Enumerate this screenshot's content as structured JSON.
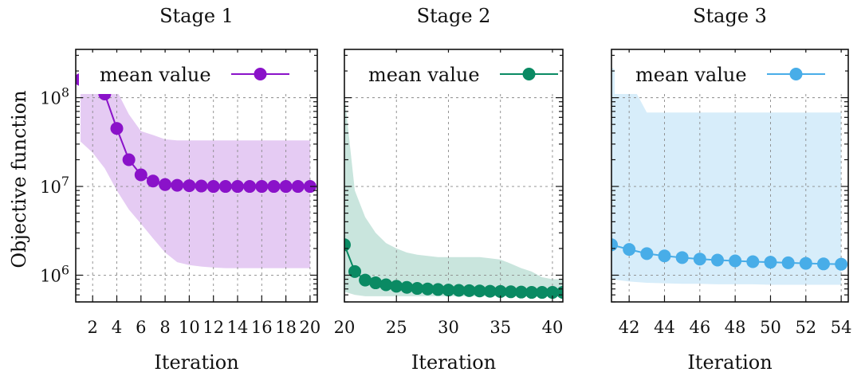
{
  "figure": {
    "ylabel": "Objective function",
    "colors": {
      "stage1": "#8a12c9",
      "stage2": "#0a8a63",
      "stage3": "#48ade8"
    }
  },
  "chart_data": [
    {
      "type": "line",
      "title": "Stage 1",
      "xlabel": "Iteration",
      "ylabel": "Objective function",
      "yscale": "log",
      "xlim": [
        0.6,
        20.6
      ],
      "ylim": [
        500000.0,
        350000000.0
      ],
      "xticks": [
        2,
        4,
        6,
        8,
        10,
        12,
        14,
        16,
        18,
        20
      ],
      "yticks": [
        {
          "value": 1000000.0,
          "label": "10^6"
        },
        {
          "value": 10000000.0,
          "label": "10^7"
        },
        {
          "value": 100000000.0,
          "label": "10^8"
        }
      ],
      "grid": true,
      "legend_position": "top",
      "series": [
        {
          "name": "mean value",
          "color": "#8a12c9",
          "x": [
            1,
            2,
            3,
            4,
            5,
            6,
            7,
            8,
            9,
            10,
            11,
            12,
            13,
            14,
            15,
            16,
            17,
            18,
            19,
            20
          ],
          "y": [
            160000000.0,
            140000000.0,
            110000000.0,
            45000000.0,
            20000000.0,
            13500000.0,
            11500000.0,
            10500000.0,
            10300000.0,
            10200000.0,
            10100000.0,
            10000000.0,
            10000000.0,
            10000000.0,
            10000000.0,
            10000000.0,
            10000000.0,
            10000000.0,
            10000000.0,
            10000000.0
          ],
          "band_lower": [
            32000000.0,
            24000000.0,
            16000000.0,
            9000000.0,
            5500000.0,
            3800000.0,
            2600000.0,
            1800000.0,
            1400000.0,
            1300000.0,
            1250000.0,
            1220000.0,
            1200000.0,
            1200000.0,
            1200000.0,
            1200000.0,
            1200000.0,
            1200000.0,
            1200000.0,
            1200000.0
          ],
          "band_upper": [
            300000000.0,
            270000000.0,
            210000000.0,
            120000000.0,
            65000000.0,
            42000000.0,
            38000000.0,
            34000000.0,
            33000000.0,
            33000000.0,
            33000000.0,
            33000000.0,
            33000000.0,
            33000000.0,
            33000000.0,
            33000000.0,
            33000000.0,
            33000000.0,
            33000000.0,
            33000000.0
          ]
        }
      ]
    },
    {
      "type": "line",
      "title": "Stage 2",
      "xlabel": "Iteration",
      "ylabel": "",
      "yscale": "log",
      "xlim": [
        20,
        41
      ],
      "ylim": [
        500000.0,
        350000000.0
      ],
      "xticks": [
        20,
        25,
        30,
        35,
        40
      ],
      "yticks": [],
      "grid": true,
      "legend_position": "top",
      "series": [
        {
          "name": "mean value",
          "color": "#0a8a63",
          "x": [
            20,
            21,
            22,
            23,
            24,
            25,
            26,
            27,
            28,
            29,
            30,
            31,
            32,
            33,
            34,
            35,
            36,
            37,
            38,
            39,
            40,
            41
          ],
          "y": [
            2200000.0,
            1100000.0,
            880000.0,
            820000.0,
            780000.0,
            750000.0,
            730000.0,
            710000.0,
            700000.0,
            690000.0,
            680000.0,
            675000.0,
            670000.0,
            665000.0,
            660000.0,
            655000.0,
            650000.0,
            645000.0,
            640000.0,
            640000.0,
            640000.0,
            640000.0
          ],
          "band_lower": [
            650000.0,
            600000.0,
            580000.0,
            580000.0,
            580000.0,
            580000.0,
            580000.0,
            580000.0,
            580000.0,
            580000.0,
            580000.0,
            580000.0,
            580000.0,
            580000.0,
            580000.0,
            580000.0,
            580000.0,
            580000.0,
            580000.0,
            580000.0,
            580000.0,
            580000.0
          ],
          "band_upper": [
            110000000.0,
            9000000.0,
            4500000.0,
            3000000.0,
            2300000.0,
            2000000.0,
            1800000.0,
            1700000.0,
            1650000.0,
            1600000.0,
            1600000.0,
            1600000.0,
            1600000.0,
            1600000.0,
            1550000.0,
            1500000.0,
            1350000.0,
            1200000.0,
            1100000.0,
            950000.0,
            900000.0,
            900000.0
          ]
        }
      ]
    },
    {
      "type": "line",
      "title": "Stage 3",
      "xlabel": "Iteration",
      "ylabel": "",
      "yscale": "log",
      "xlim": [
        41,
        54.4
      ],
      "ylim": [
        500000.0,
        350000000.0
      ],
      "xticks": [
        42,
        44,
        46,
        48,
        50,
        52,
        54
      ],
      "yticks": [],
      "grid": true,
      "legend_position": "top",
      "series": [
        {
          "name": "mean value",
          "color": "#48ade8",
          "x": [
            41,
            42,
            43,
            44,
            45,
            46,
            47,
            48,
            49,
            50,
            51,
            52,
            53,
            54
          ],
          "y": [
            2200000.0,
            1950000.0,
            1750000.0,
            1650000.0,
            1580000.0,
            1520000.0,
            1480000.0,
            1450000.0,
            1420000.0,
            1400000.0,
            1380000.0,
            1360000.0,
            1340000.0,
            1330000.0
          ],
          "band_lower": [
            900000.0,
            850000.0,
            820000.0,
            810000.0,
            800000.0,
            800000.0,
            790000.0,
            790000.0,
            790000.0,
            780000.0,
            780000.0,
            780000.0,
            780000.0,
            780000.0
          ],
          "band_upper": [
            220000000.0,
            160000000.0,
            68000000.0,
            68000000.0,
            68000000.0,
            68000000.0,
            68000000.0,
            68000000.0,
            68000000.0,
            68000000.0,
            68000000.0,
            68000000.0,
            68000000.0,
            68000000.0
          ]
        }
      ]
    }
  ]
}
